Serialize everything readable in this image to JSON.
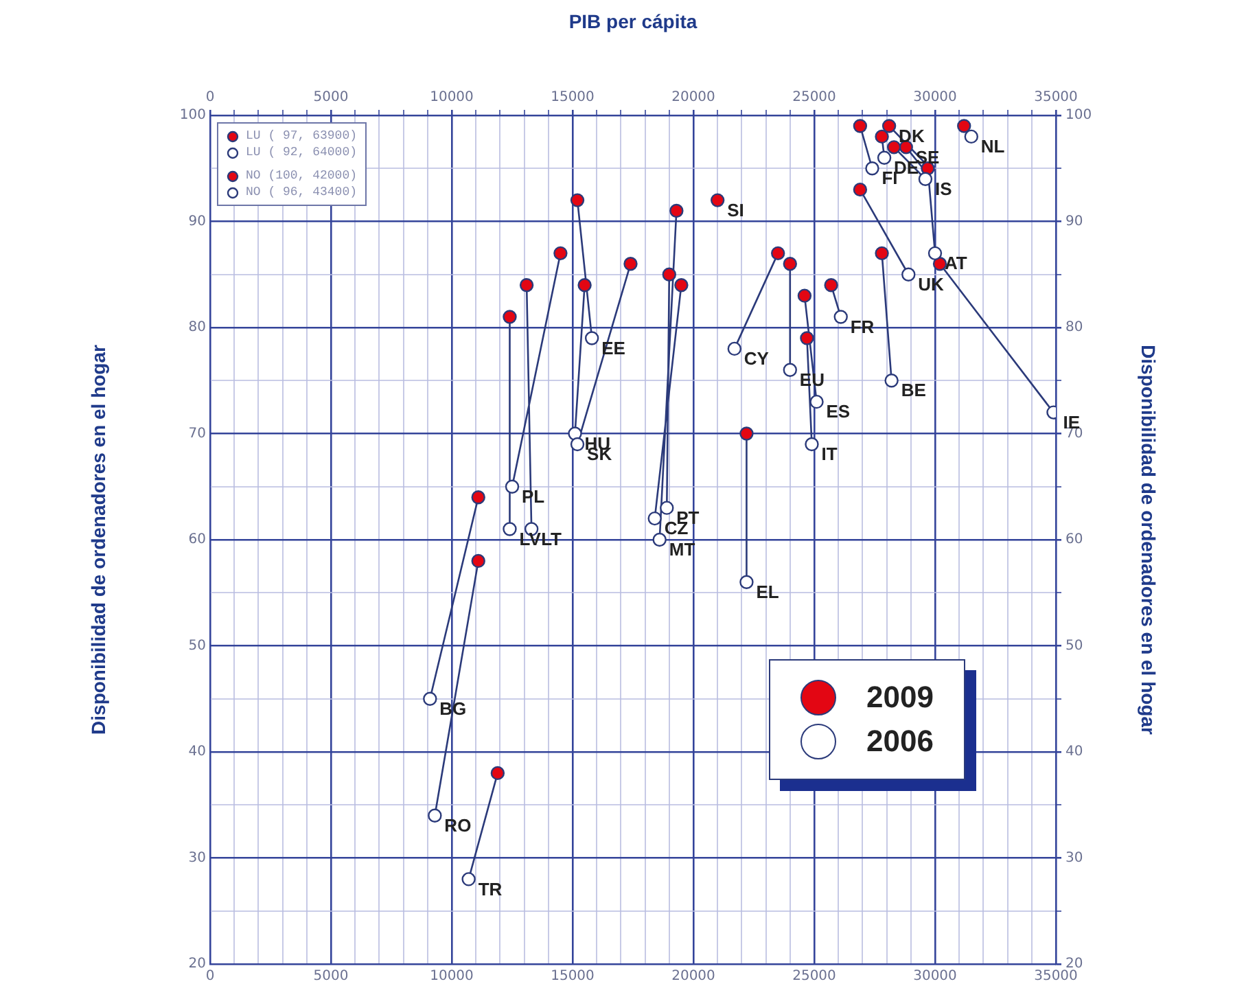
{
  "chart_data": {
    "type": "scatter",
    "x2label": "PIB per cápita",
    "ylabel": "Disponibilidad de ordenadores en el hogar",
    "y2label": "Disponibilidad de ordenadores en el hogar",
    "xlim": [
      0,
      35000
    ],
    "x2lim": [
      0,
      35000
    ],
    "ylim": [
      20,
      100
    ],
    "y2lim": [
      20,
      100
    ],
    "xticks": [
      0,
      {
        "value": 1000,
        "label": null
      },
      {
        "value": 2000,
        "label": null
      },
      {
        "value": 3000,
        "label": null
      },
      {
        "value": 4000,
        "label": null
      },
      5000,
      {
        "value": 6000,
        "label": null
      },
      {
        "value": 7000,
        "label": null
      },
      {
        "value": 8000,
        "label": null
      },
      {
        "value": 9000,
        "label": null
      },
      10000,
      {
        "value": 11000,
        "label": null
      },
      {
        "value": 12000,
        "label": null
      },
      {
        "value": 13000,
        "label": null
      },
      {
        "value": 14000,
        "label": null
      },
      15000,
      {
        "value": 16000,
        "label": null
      },
      {
        "value": 17000,
        "label": null
      },
      {
        "value": 18000,
        "label": null
      },
      {
        "value": 19000,
        "label": null
      },
      20000,
      {
        "value": 21000,
        "label": null
      },
      {
        "value": 22000,
        "label": null
      },
      {
        "value": 23000,
        "label": null
      },
      {
        "value": 24000,
        "label": null
      },
      25000,
      {
        "value": 26000,
        "label": null
      },
      {
        "value": 27000,
        "label": null
      },
      {
        "value": 28000,
        "label": null
      },
      {
        "value": 29000,
        "label": null
      },
      30000,
      {
        "value": 31000,
        "label": null
      },
      {
        "value": 32000,
        "label": null
      },
      {
        "value": 33000,
        "label": null
      },
      {
        "value": 34000,
        "label": null
      },
      35000
    ],
    "x2ticks": [
      0,
      {
        "value": 1000,
        "label": null
      },
      {
        "value": 2000,
        "label": null
      },
      {
        "value": 3000,
        "label": null
      },
      {
        "value": 4000,
        "label": null
      },
      5000,
      {
        "value": 6000,
        "label": null
      },
      {
        "value": 7000,
        "label": null
      },
      {
        "value": 8000,
        "label": null
      },
      {
        "value": 9000,
        "label": null
      },
      10000,
      {
        "value": 11000,
        "label": null
      },
      {
        "value": 12000,
        "label": null
      },
      {
        "value": 13000,
        "label": null
      },
      {
        "value": 14000,
        "label": null
      },
      15000,
      {
        "value": 16000,
        "label": null
      },
      {
        "value": 17000,
        "label": null
      },
      {
        "value": 18000,
        "label": null
      },
      {
        "value": 19000,
        "label": null
      },
      20000,
      {
        "value": 21000,
        "label": null
      },
      {
        "value": 22000,
        "label": null
      },
      {
        "value": 23000,
        "label": null
      },
      {
        "value": 24000,
        "label": null
      },
      25000,
      {
        "value": 26000,
        "label": null
      },
      {
        "value": 27000,
        "label": null
      },
      {
        "value": 28000,
        "label": null
      },
      {
        "value": 29000,
        "label": null
      },
      30000,
      {
        "value": 31000,
        "label": null
      },
      {
        "value": 32000,
        "label": null
      },
      {
        "value": 33000,
        "label": null
      },
      {
        "value": 34000,
        "label": null
      },
      35000
    ],
    "yticks": [
      20,
      {
        "value": 25,
        "label": null
      },
      30,
      {
        "value": 35,
        "label": null
      },
      40,
      {
        "value": 45,
        "label": null
      },
      50,
      {
        "value": 55,
        "label": null
      },
      60,
      {
        "value": 65,
        "label": null
      },
      70,
      {
        "value": 75,
        "label": null
      },
      80,
      {
        "value": 85,
        "label": null
      },
      90,
      {
        "value": 95,
        "label": null
      },
      100
    ],
    "y2ticks": [
      20,
      {
        "value": 25,
        "label": null
      },
      30,
      {
        "value": 35,
        "label": null
      },
      40,
      {
        "value": 45,
        "label": null
      },
      50,
      {
        "value": 55,
        "label": null
      },
      60,
      {
        "value": 65,
        "label": null
      },
      70,
      {
        "value": 75,
        "label": null
      },
      80,
      {
        "value": 85,
        "label": null
      },
      90,
      {
        "value": 95,
        "label": null
      },
      100
    ],
    "grid": true,
    "legend": "bottom right",
    "series": [
      {
        "type": "line",
        "color": "#2b3a7a",
        "marker": "none",
        "x": [
          11900,
          10700,
          null,
          11100,
          9300,
          null,
          11100,
          9100,
          null,
          12400,
          12400,
          null,
          13100,
          13300,
          null,
          14500,
          12500,
          null,
          15500,
          15100,
          null,
          17400,
          15200,
          null,
          15200,
          15800,
          null,
          19500,
          18400,
          null,
          19000,
          18900,
          null,
          19300,
          18600,
          null,
          22200,
          22200,
          null,
          23500,
          21700,
          null,
          24000,
          24000,
          null,
          24700,
          24900,
          null,
          24600,
          25100,
          null,
          25700,
          26100,
          null,
          27800,
          28200,
          null,
          26900,
          28900,
          null,
          26900,
          27400,
          null,
          27800,
          27900,
          null,
          28100,
          29800,
          null,
          28800,
          29500,
          null,
          28300,
          29600,
          null,
          29700,
          30000,
          null,
          30200,
          34900,
          null,
          31200,
          31500
        ],
        "values": [
          38,
          28,
          null,
          58,
          34,
          null,
          64,
          45,
          null,
          81,
          61,
          null,
          84,
          61,
          null,
          87,
          65,
          null,
          84,
          70,
          null,
          86,
          69,
          null,
          92,
          79,
          null,
          84,
          62,
          null,
          85,
          63,
          null,
          91,
          60,
          null,
          70,
          56,
          null,
          87,
          78,
          null,
          86,
          76,
          null,
          79,
          69,
          null,
          83,
          73,
          null,
          84,
          81,
          null,
          87,
          75,
          null,
          93,
          85,
          null,
          99,
          95,
          null,
          98,
          96,
          null,
          99,
          95,
          null,
          97,
          95,
          null,
          97,
          94,
          null,
          95,
          87,
          null,
          86,
          72,
          null,
          99,
          98
        ]
      },
      {
        "name": "2009",
        "type": "scatter",
        "color": "#e30613",
        "marker": "circle",
        "x": [
          11900,
          11100,
          11100,
          12400,
          13100,
          14500,
          15500,
          17400,
          15200,
          19500,
          19000,
          19300,
          22200,
          23500,
          24000,
          24700,
          24600,
          25700,
          27800,
          26900,
          26900,
          27800,
          28100,
          28800,
          28300,
          29700,
          30200,
          31200,
          21000
        ],
        "values": [
          38,
          58,
          64,
          81,
          84,
          87,
          84,
          86,
          92,
          84,
          85,
          91,
          70,
          87,
          86,
          79,
          83,
          84,
          87,
          93,
          99,
          98,
          99,
          97,
          97,
          95,
          86,
          99,
          92
        ]
      },
      {
        "name": "2006",
        "type": "scatter",
        "color": "#ffffff",
        "marker": "circle",
        "x": [
          10700,
          9300,
          9100,
          12400,
          13300,
          12500,
          15100,
          15200,
          15800,
          18400,
          18900,
          18600,
          22200,
          21700,
          24000,
          24900,
          25100,
          26100,
          28200,
          28900,
          27400,
          27900,
          null,
          null,
          29600,
          30000,
          34900,
          31500
        ],
        "values": [
          28,
          34,
          45,
          61,
          61,
          65,
          70,
          69,
          79,
          62,
          63,
          60,
          56,
          78,
          76,
          69,
          73,
          81,
          75,
          85,
          95,
          96,
          null,
          null,
          94,
          87,
          72,
          98
        ]
      }
    ],
    "annotations": [
      {
        "text": "TR",
        "x": 10700,
        "y": 28
      },
      {
        "text": "RO",
        "x": 9300,
        "y": 34
      },
      {
        "text": "BG",
        "x": 9100,
        "y": 45
      },
      {
        "text": "LV",
        "x": 12400,
        "y": 61
      },
      {
        "text": "LT",
        "x": 13300,
        "y": 61
      },
      {
        "text": "PL",
        "x": 12500,
        "y": 65
      },
      {
        "text": "HU",
        "x": 15100,
        "y": 70
      },
      {
        "text": "SK",
        "x": 15200,
        "y": 69
      },
      {
        "text": "EE",
        "x": 15800,
        "y": 79
      },
      {
        "text": "CZ",
        "x": 18400,
        "y": 62
      },
      {
        "text": "PT",
        "x": 18900,
        "y": 63
      },
      {
        "text": "MT",
        "x": 18600,
        "y": 60
      },
      {
        "text": "EL",
        "x": 22200,
        "y": 56
      },
      {
        "text": "CY",
        "x": 21700,
        "y": 78
      },
      {
        "text": "EU",
        "x": 24000,
        "y": 76
      },
      {
        "text": "IT",
        "x": 24900,
        "y": 69
      },
      {
        "text": "ES",
        "x": 25100,
        "y": 73
      },
      {
        "text": "FR",
        "x": 26100,
        "y": 81
      },
      {
        "text": "BE",
        "x": 28200,
        "y": 75
      },
      {
        "text": "UK",
        "x": 28900,
        "y": 85
      },
      {
        "text": "FI",
        "x": 27400,
        "y": 95
      },
      {
        "text": "DE",
        "x": 27900,
        "y": 96
      },
      {
        "text": "DK",
        "x": 28100,
        "y": 99
      },
      {
        "text": "SE",
        "x": 28800,
        "y": 97
      },
      {
        "text": "IS",
        "x": 29600,
        "y": 94
      },
      {
        "text": "AT",
        "x": 30000,
        "y": 87
      },
      {
        "text": "IE",
        "x": 34900,
        "y": 72
      },
      {
        "text": "NL",
        "x": 31500,
        "y": 98
      },
      {
        "text": "SI",
        "x": 21000,
        "y": 92
      },
      "LU ( 97, 63900)",
      "LU ( 92, 64000)",
      "NO (100, 42000)",
      "NO ( 96, 43400)"
    ]
  }
}
